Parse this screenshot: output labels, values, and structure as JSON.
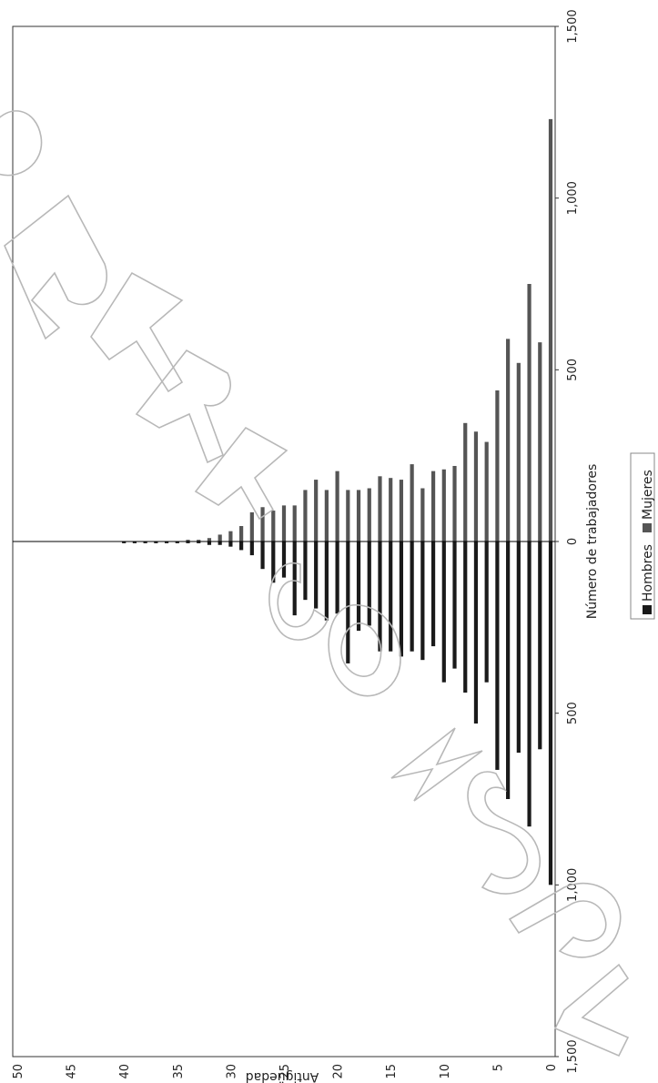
{
  "chart_data": {
    "type": "bar",
    "orientation": "population-pyramid (rotated 90°)",
    "xlabel": "Número de trabajadores",
    "ylabel": "Antigüedad",
    "value_axis": {
      "range": [
        -1500,
        1500
      ],
      "ticks": [
        -1500,
        -1000,
        -500,
        0,
        500,
        1000,
        1500
      ],
      "tick_labels": [
        "1,500",
        "1,000",
        "500",
        "0",
        "500",
        "1,000",
        "1,500"
      ]
    },
    "category_axis": {
      "range": [
        0,
        50
      ],
      "ticks": [
        0,
        5,
        10,
        15,
        20,
        25,
        30,
        35,
        40,
        45,
        50
      ],
      "tick_labels": [
        "0",
        "5",
        "10",
        "15",
        "20",
        "25",
        "30",
        "35",
        "40",
        "45",
        "50"
      ]
    },
    "categories": [
      0,
      1,
      2,
      3,
      4,
      5,
      6,
      7,
      8,
      9,
      10,
      11,
      12,
      13,
      14,
      15,
      16,
      17,
      18,
      19,
      20,
      21,
      22,
      23,
      24,
      25,
      26,
      27,
      28,
      29,
      30,
      31,
      32,
      33,
      34,
      35,
      36,
      37,
      38,
      39,
      40,
      41,
      42,
      43,
      44,
      45,
      46,
      47,
      48,
      49,
      50
    ],
    "series": [
      {
        "name": "Hombres",
        "color": "#1a1a1a",
        "values": [
          1000,
          605,
          830,
          615,
          750,
          665,
          410,
          530,
          440,
          370,
          410,
          305,
          345,
          320,
          335,
          320,
          320,
          245,
          260,
          355,
          210,
          230,
          195,
          170,
          215,
          105,
          120,
          80,
          40,
          25,
          15,
          10,
          10,
          5,
          5,
          5,
          5,
          5,
          5,
          5,
          5,
          0,
          0,
          0,
          0,
          0,
          0,
          0,
          0,
          0,
          0
        ]
      },
      {
        "name": "Mujeres",
        "color": "#555555",
        "values": [
          1230,
          580,
          750,
          520,
          590,
          440,
          290,
          320,
          345,
          220,
          210,
          205,
          155,
          225,
          180,
          185,
          190,
          155,
          150,
          150,
          205,
          150,
          180,
          150,
          105,
          105,
          90,
          100,
          85,
          45,
          30,
          20,
          10,
          5,
          5,
          0,
          0,
          0,
          0,
          0,
          0,
          0,
          0,
          0,
          0,
          0,
          0,
          0,
          0,
          0,
          0
        ]
      }
    ],
    "legend": {
      "position": "bottom",
      "entries": [
        "Hombres",
        "Mujeres"
      ]
    },
    "grid": false
  }
}
